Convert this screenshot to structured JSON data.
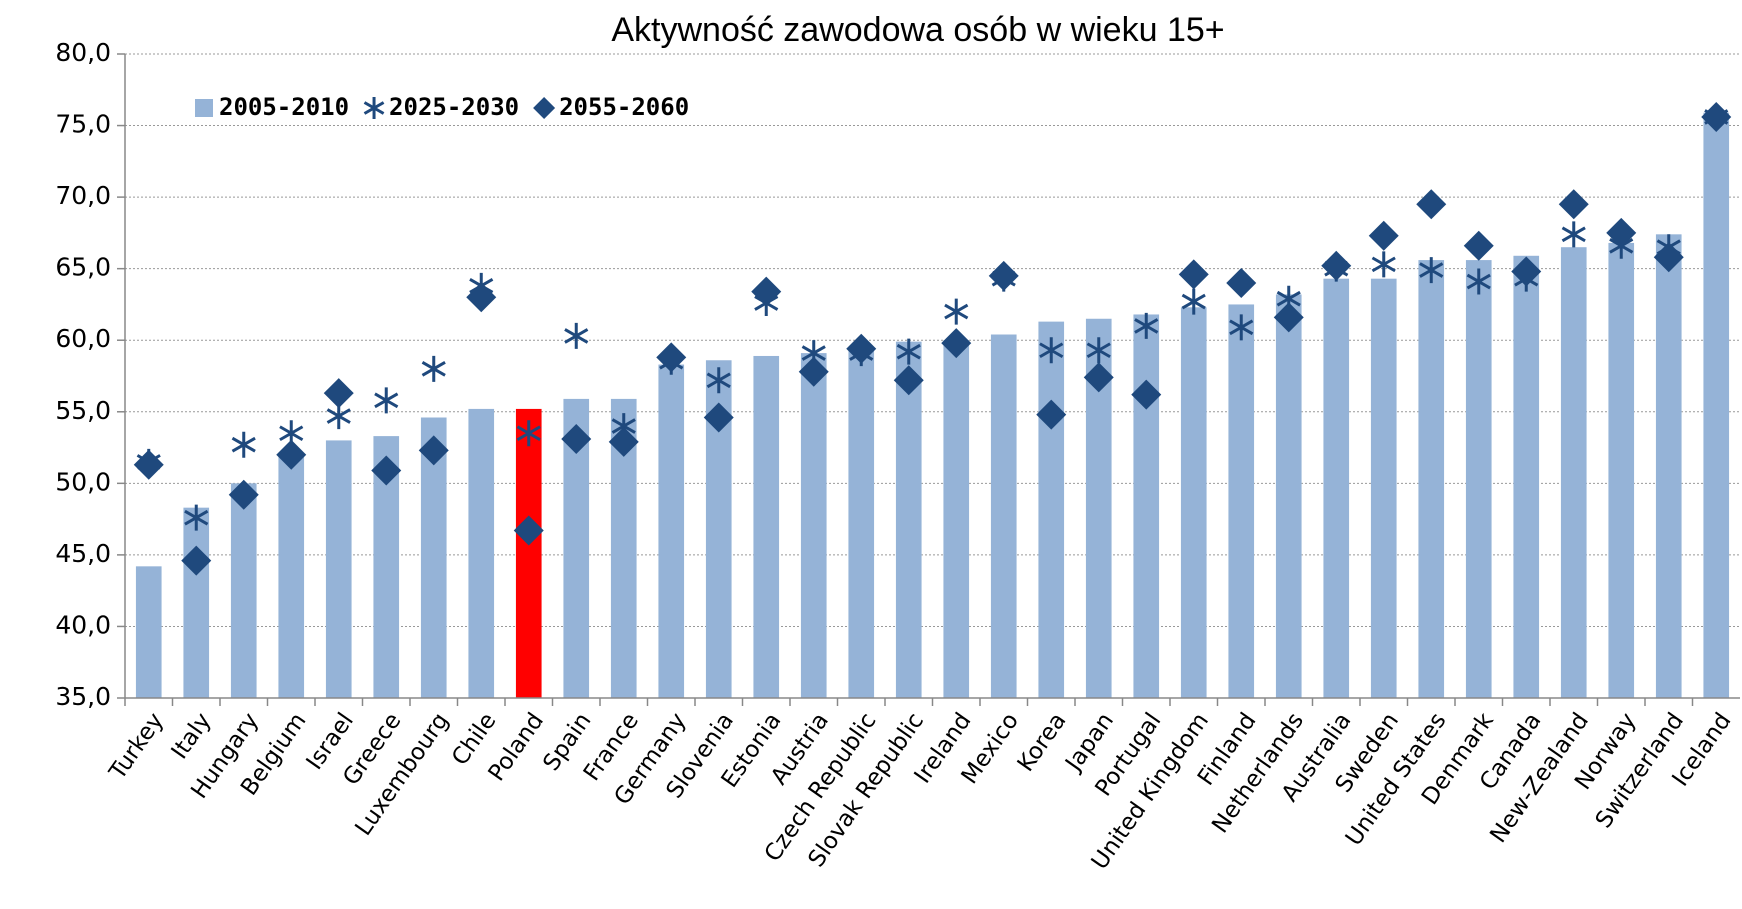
{
  "chart_data": {
    "type": "bar",
    "title": "Aktywność zawodowa osób w wieku 15+",
    "categories": [
      "Turkey",
      "Italy",
      "Hungary",
      "Belgium",
      "Israel",
      "Greece",
      "Luxembourg",
      "Chile",
      "Poland",
      "Spain",
      "France",
      "Germany",
      "Slovenia",
      "Estonia",
      "Austria",
      "Czech Republic",
      "Slovak Republic",
      "Ireland",
      "Mexico",
      "Korea",
      "Japan",
      "Portugal",
      "United Kingdom",
      "Finland",
      "Netherlands",
      "Australia",
      "Sweden",
      "United States",
      "Denmark",
      "Canada",
      "New-Zealand",
      "Norway",
      "Switzerland",
      "Iceland"
    ],
    "series": [
      {
        "name": "2005-2010",
        "marker": "bar",
        "color": "#95b3d7",
        "bar_colors": [
          "#95b3d7",
          "#95b3d7",
          "#95b3d7",
          "#95b3d7",
          "#95b3d7",
          "#95b3d7",
          "#95b3d7",
          "#95b3d7",
          "#ff0000",
          "#95b3d7",
          "#95b3d7",
          "#95b3d7",
          "#95b3d7",
          "#95b3d7",
          "#95b3d7",
          "#95b3d7",
          "#95b3d7",
          "#95b3d7",
          "#95b3d7",
          "#95b3d7",
          "#95b3d7",
          "#95b3d7",
          "#95b3d7",
          "#95b3d7",
          "#95b3d7",
          "#95b3d7",
          "#95b3d7",
          "#95b3d7",
          "#95b3d7",
          "#95b3d7",
          "#95b3d7",
          "#95b3d7",
          "#95b3d7",
          "#95b3d7"
        ],
        "values": [
          44.2,
          48.3,
          50.0,
          52.0,
          53.0,
          53.3,
          54.6,
          55.2,
          55.2,
          55.9,
          55.9,
          58.3,
          58.6,
          58.9,
          59.1,
          59.5,
          59.9,
          60.0,
          60.4,
          61.3,
          61.5,
          61.8,
          62.3,
          62.5,
          63.2,
          64.3,
          64.3,
          65.6,
          65.6,
          65.9,
          66.5,
          66.8,
          67.4,
          75.9
        ]
      },
      {
        "name": "2025-2030",
        "marker": "star",
        "color": "#1f497d",
        "values": [
          51.5,
          47.6,
          52.7,
          53.5,
          54.7,
          55.8,
          58.0,
          63.8,
          53.5,
          60.3,
          54.0,
          58.5,
          57.2,
          62.6,
          59.1,
          59.1,
          59.2,
          62.0,
          64.3,
          59.3,
          59.3,
          61.0,
          62.7,
          60.9,
          62.9,
          65.0,
          65.3,
          64.9,
          64.1,
          64.3,
          67.4,
          66.6,
          66.5,
          75.6
        ]
      },
      {
        "name": "2055-2060",
        "marker": "diamond",
        "color": "#1f497d",
        "values": [
          51.3,
          44.6,
          49.2,
          52.0,
          56.3,
          50.9,
          52.3,
          63.0,
          46.7,
          53.1,
          52.9,
          58.8,
          54.6,
          63.4,
          57.8,
          59.4,
          57.2,
          59.8,
          64.5,
          54.8,
          57.4,
          56.2,
          64.6,
          64.0,
          61.6,
          65.2,
          67.3,
          69.5,
          66.6,
          64.8,
          69.5,
          67.5,
          65.8,
          75.6
        ]
      }
    ],
    "ylim": [
      35,
      80
    ],
    "yticks": [
      {
        "value": 35,
        "label": "35,0"
      },
      {
        "value": 40,
        "label": "40,0"
      },
      {
        "value": 45,
        "label": "45,0"
      },
      {
        "value": 50,
        "label": "50,0"
      },
      {
        "value": 55,
        "label": "55,0"
      },
      {
        "value": 60,
        "label": "60,0"
      },
      {
        "value": 65,
        "label": "65,0"
      },
      {
        "value": 70,
        "label": "70,0"
      },
      {
        "value": 75,
        "label": "75,0"
      },
      {
        "value": 80,
        "label": "80,0"
      }
    ],
    "grid": true,
    "legend": "top-left"
  }
}
